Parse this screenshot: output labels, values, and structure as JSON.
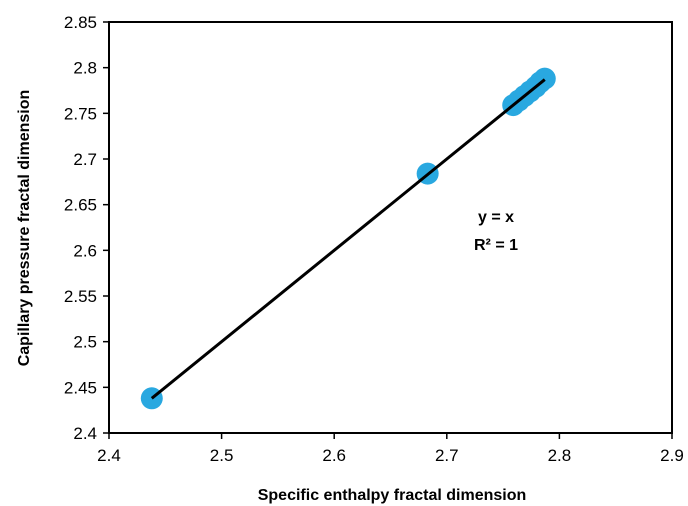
{
  "chart_data": {
    "type": "scatter",
    "title": "",
    "xlabel": "Specific enthalpy fractal dimension",
    "ylabel": "Capillary pressure fractal dimension",
    "xlim": [
      2.4,
      2.9
    ],
    "ylim": [
      2.4,
      2.85
    ],
    "x_ticks": [
      2.4,
      2.5,
      2.6,
      2.7,
      2.8,
      2.9
    ],
    "x_tick_labels": [
      "2.4",
      "2.5",
      "2.6",
      "2.7",
      "2.8",
      "2.9"
    ],
    "y_ticks": [
      2.4,
      2.45,
      2.5,
      2.55,
      2.6,
      2.65,
      2.7,
      2.75,
      2.8,
      2.85
    ],
    "y_tick_labels": [
      "2.4",
      "2.45",
      "2.5",
      "2.55",
      "2.6",
      "2.65",
      "2.7",
      "2.75",
      "2.8",
      "2.85"
    ],
    "grid": false,
    "legend": false,
    "series": [
      {
        "marker_color": "#29a8e0",
        "x": [
          2.438,
          2.683,
          2.759,
          2.764,
          2.769,
          2.774,
          2.779,
          2.783,
          2.787
        ],
        "y": [
          2.438,
          2.684,
          2.759,
          2.764,
          2.769,
          2.774,
          2.779,
          2.784,
          2.788
        ]
      }
    ],
    "trendline": {
      "color": "#000000",
      "x": [
        2.438,
        2.787
      ],
      "y": [
        2.438,
        2.787
      ]
    },
    "annotations": {
      "equation": "y = x",
      "r_squared": "R² = 1"
    }
  }
}
